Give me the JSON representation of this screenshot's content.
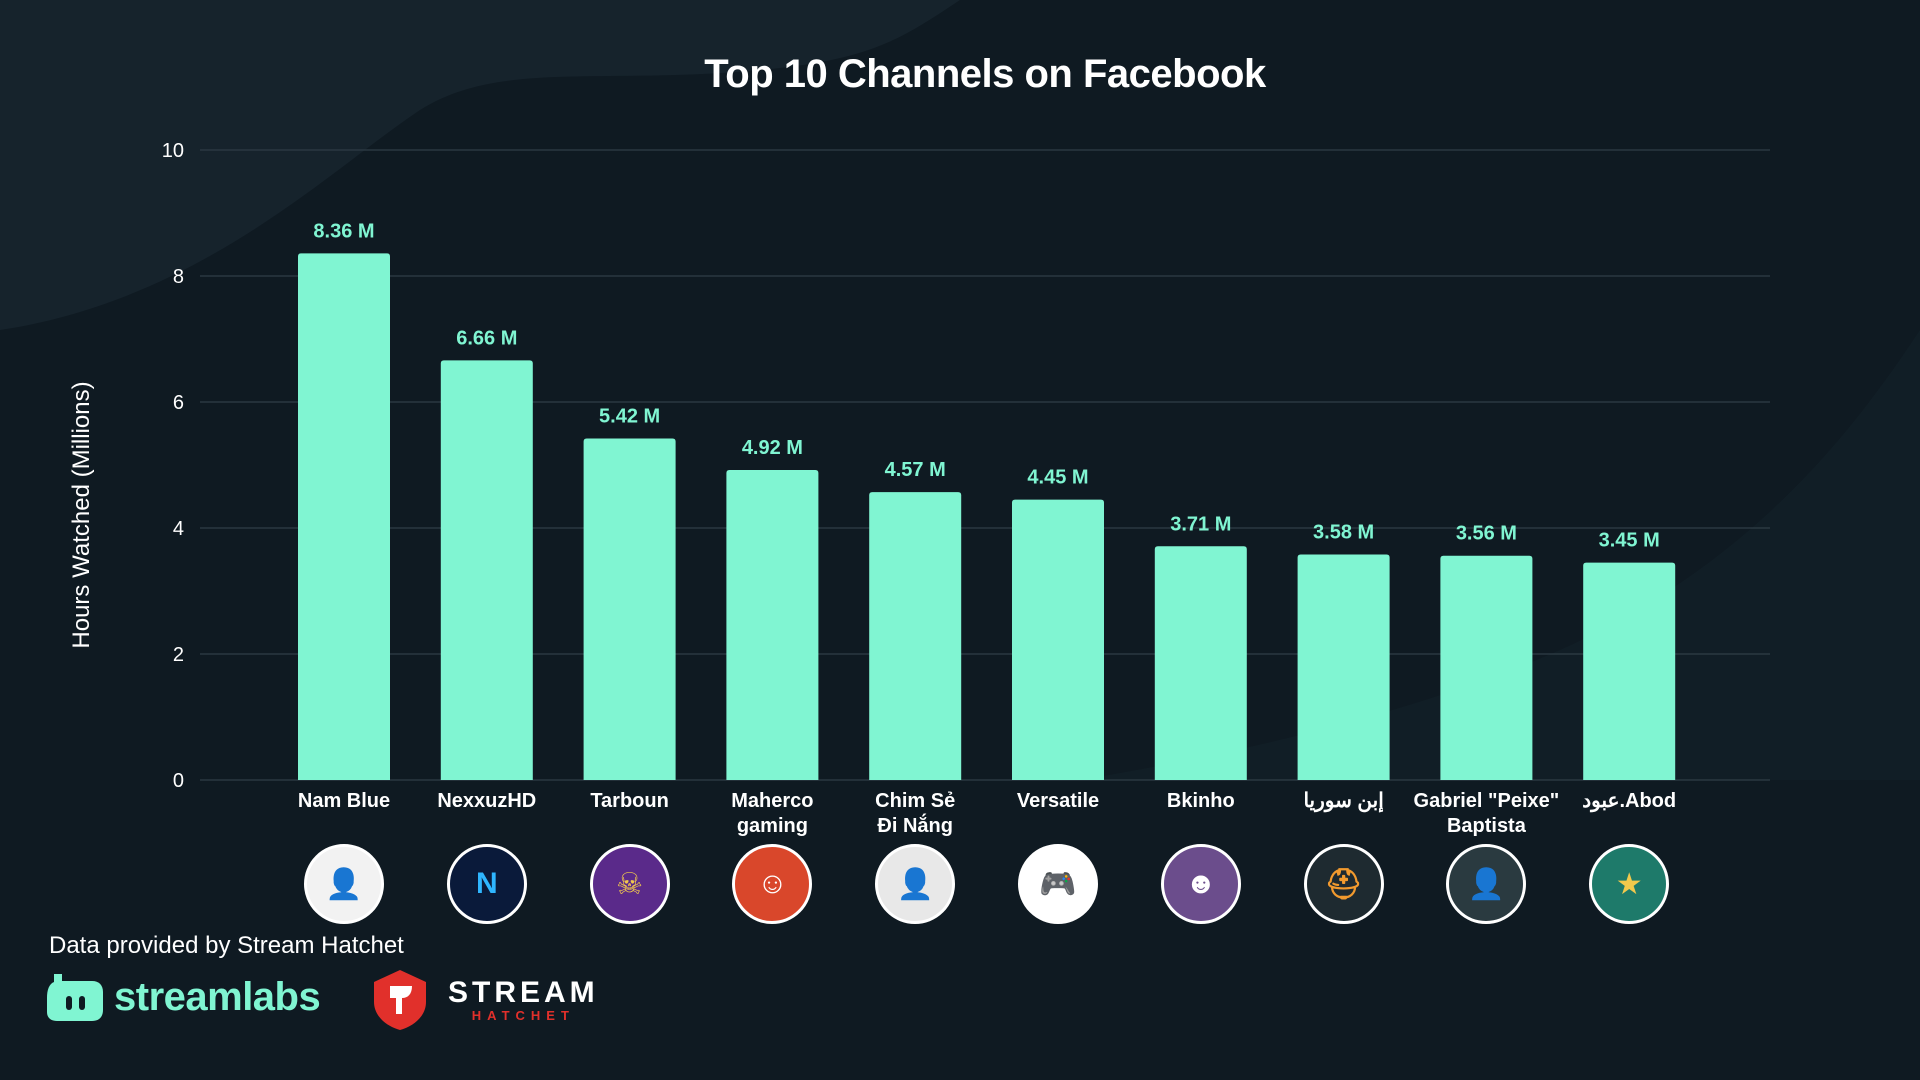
{
  "chart_data": {
    "type": "bar",
    "title": "Top 10 Channels on Facebook",
    "xlabel": "",
    "ylabel": "Hours Watched (Millions)",
    "ylim": [
      0,
      10
    ],
    "yticks": [
      0,
      2,
      4,
      6,
      8,
      10
    ],
    "grid": true,
    "categories": [
      "Nam Blue",
      "NexxuzHD",
      "Tarboun",
      "Maherco gaming",
      "Chim Sẻ Đi Nắng",
      "Versatile",
      "Bkinho",
      "إبن سوريا",
      "Gabriel \"Peixe\" Baptista",
      "عبود.Abod"
    ],
    "category_lines": [
      [
        "Nam Blue"
      ],
      [
        "NexxuzHD"
      ],
      [
        "Tarboun"
      ],
      [
        "Maherco",
        "gaming"
      ],
      [
        "Chim Sẻ",
        "Đi Nắng"
      ],
      [
        "Versatile"
      ],
      [
        "Bkinho"
      ],
      [
        "إبن سوريا"
      ],
      [
        "Gabriel \"Peixe\"",
        "Baptista"
      ],
      [
        "عبود.Abod"
      ]
    ],
    "values": [
      8.36,
      6.66,
      5.42,
      4.92,
      4.57,
      4.45,
      3.71,
      3.58,
      3.56,
      3.45
    ],
    "data_labels": [
      "8.36 M",
      "6.66 M",
      "5.42 M",
      "4.92 M",
      "4.57 M",
      "4.45 M",
      "3.71 M",
      "3.58 M",
      "3.56 M",
      "3.45 M"
    ],
    "bar_color": "#80f5d2"
  },
  "avatars": [
    {
      "name": "avatar-nam-blue",
      "icon": "person-photo-icon",
      "bg": "#f2f2f2",
      "fg": "#333333",
      "glyph": "👤"
    },
    {
      "name": "avatar-nexxuzhd",
      "icon": "letter-n-logo-icon",
      "bg": "#0a1a3a",
      "fg": "#2fb6ff",
      "glyph": "N"
    },
    {
      "name": "avatar-tarboun",
      "icon": "gaming-mascot-icon",
      "bg": "#5a2a8a",
      "fg": "#f2c94c",
      "glyph": "☠"
    },
    {
      "name": "avatar-maherco",
      "icon": "gaming-mascot-icon",
      "bg": "#d9472b",
      "fg": "#ffffff",
      "glyph": "☺"
    },
    {
      "name": "avatar-chim-se",
      "icon": "person-photo-icon",
      "bg": "#e8e8e8",
      "fg": "#e8772e",
      "glyph": "👤"
    },
    {
      "name": "avatar-versatile",
      "icon": "gamepad-logo-icon",
      "bg": "#ffffff",
      "fg": "#111111",
      "glyph": "🎮"
    },
    {
      "name": "avatar-bkinho",
      "icon": "anime-avatar-icon",
      "bg": "#6b4d8c",
      "fg": "#ffffff",
      "glyph": "☻"
    },
    {
      "name": "avatar-ibn-syria",
      "icon": "helmet-avatar-icon",
      "bg": "#1e2a30",
      "fg": "#f29a2e",
      "glyph": "⛑"
    },
    {
      "name": "avatar-gabriel",
      "icon": "person-photo-icon",
      "bg": "#2a3a40",
      "fg": "#c9d6dc",
      "glyph": "👤"
    },
    {
      "name": "avatar-abod",
      "icon": "gaming-mascot-icon",
      "bg": "#1e7a6a",
      "fg": "#f2c94c",
      "glyph": "★"
    }
  ],
  "footer": {
    "provided_by": "Data provided by Stream Hatchet",
    "streamlabs_label": "streamlabs",
    "streamhatchet_main": "STREAM",
    "streamhatchet_sub": "HATCHET"
  },
  "colors": {
    "background": "#0f1a22",
    "accent": "#80f5d2",
    "grid": "#2a3841",
    "hatchet_red": "#e1302b"
  }
}
